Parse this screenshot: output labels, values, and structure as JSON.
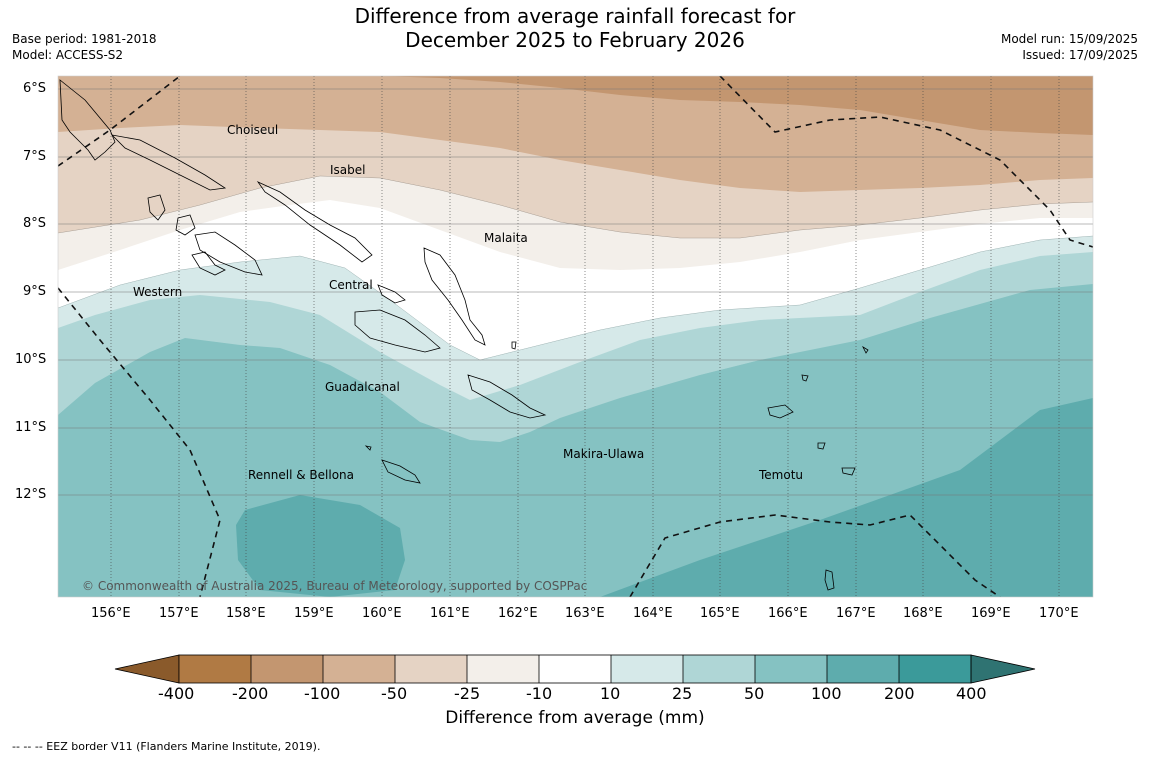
{
  "header": {
    "title_line1": "Difference from average rainfall forecast for",
    "title_line2": "December 2025 to February 2026",
    "base_period": "Base period: 1981-2018",
    "model": "Model: ACCESS-S2",
    "model_run": "Model run: 15/09/2025",
    "issued": "Issued: 17/09/2025"
  },
  "map": {
    "longitude_ticks": [
      "156°E",
      "157°E",
      "158°E",
      "159°E",
      "160°E",
      "161°E",
      "162°E",
      "163°E",
      "164°E",
      "165°E",
      "166°E",
      "167°E",
      "168°E",
      "169°E",
      "170°E"
    ],
    "latitude_ticks": [
      "6°S",
      "7°S",
      "8°S",
      "9°S",
      "10°S",
      "11°S",
      "12°S"
    ],
    "region_labels": {
      "choiseul": "Choiseul",
      "isabel": "Isabel",
      "malaita": "Malaita",
      "western": "Western",
      "central": "Central",
      "guadalcanal": "Guadalcanal",
      "makira": "Makira-Ulawa",
      "rennell": "Rennell & Bellona",
      "temotu": "Temotu"
    },
    "copyright": "© Commonwealth of Australia 2025, Bureau of Meteorology, supported by COSPPac"
  },
  "legend": {
    "title": "Difference from average (mm)",
    "bins": [
      "-400",
      "-200",
      "-100",
      "-50",
      "-25",
      "-10",
      "10",
      "25",
      "50",
      "100",
      "200",
      "400"
    ],
    "colors": [
      "#8a5a2b",
      "#b07a44",
      "#c39670",
      "#d4b194",
      "#e5d3c4",
      "#f3efea",
      "#ffffff",
      "#d6e9e9",
      "#afd6d6",
      "#85c2c2",
      "#5eacad",
      "#3b9a9a",
      "#2f7372"
    ]
  },
  "footnote": "--  --  -- EEZ border V11 (Flanders Marine Institute, 2019)."
}
